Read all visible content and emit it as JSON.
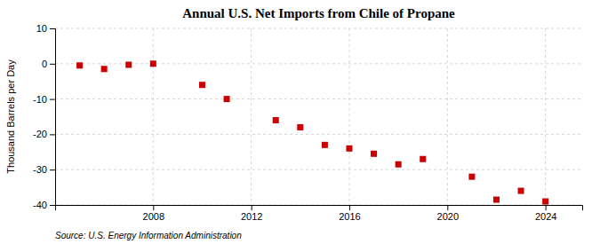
{
  "chart_data": {
    "type": "scatter",
    "title": "Annual U.S. Net Imports from Chile of Propane",
    "ylabel": "Thousand Barrels per Day",
    "source": "Source: U.S. Energy Information Administration",
    "x": [
      2005,
      2006,
      2007,
      2008,
      2010,
      2011,
      2013,
      2014,
      2015,
      2016,
      2017,
      2018,
      2019,
      2021,
      2022,
      2023,
      2024
    ],
    "values": [
      -0.5,
      -1.5,
      -0.3,
      0.0,
      -6.0,
      -10.0,
      -16.0,
      -18.0,
      -23.0,
      -24.0,
      -25.5,
      -28.5,
      -27.0,
      -32.0,
      -38.5,
      -36.0,
      -39.0
    ],
    "color": "#cc0000",
    "marker": "square",
    "xlim": [
      2004.0,
      2025.5
    ],
    "ylim": [
      -40,
      10
    ],
    "yticks": [
      10,
      0,
      -10,
      -20,
      -30,
      -40
    ],
    "xticks": [
      2008,
      2012,
      2016,
      2020,
      2024
    ],
    "grid": true
  }
}
